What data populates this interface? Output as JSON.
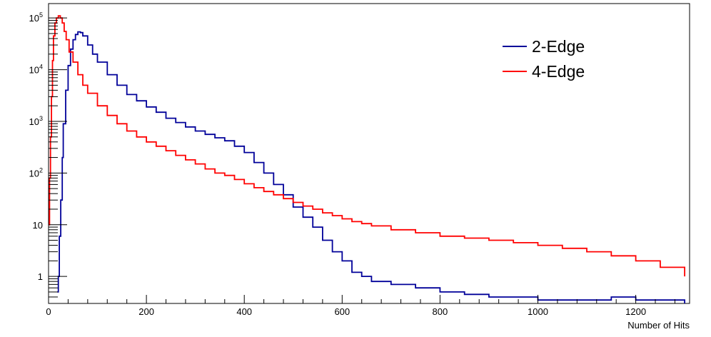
{
  "chart_data": {
    "type": "line",
    "title": "",
    "xlabel": "Number of Hits",
    "ylabel": "",
    "xlim": [
      0,
      1310
    ],
    "ylim": [
      0.3,
      190000
    ],
    "log_y": true,
    "grid": false,
    "legend_position": "top-right",
    "x_ticks": [
      "0",
      "200",
      "400",
      "600",
      "800",
      "1000",
      "1200"
    ],
    "y_ticks": [
      {
        "value": 1,
        "base": "1",
        "exp": ""
      },
      {
        "value": 10,
        "base": "10",
        "exp": ""
      },
      {
        "value": 100,
        "base": "10",
        "exp": "2"
      },
      {
        "value": 1000,
        "base": "10",
        "exp": "3"
      },
      {
        "value": 10000,
        "base": "10",
        "exp": "4"
      },
      {
        "value": 100000,
        "base": "10",
        "exp": "5"
      }
    ],
    "series": [
      {
        "name": "2-Edge",
        "color": "#000099",
        "points": [
          [
            18,
            0.5
          ],
          [
            20,
            1
          ],
          [
            22,
            6
          ],
          [
            25,
            30
          ],
          [
            28,
            200
          ],
          [
            30,
            900
          ],
          [
            35,
            4000
          ],
          [
            40,
            12000
          ],
          [
            45,
            25000
          ],
          [
            50,
            38000
          ],
          [
            55,
            48000
          ],
          [
            60,
            54000
          ],
          [
            65,
            52000
          ],
          [
            70,
            45000
          ],
          [
            80,
            30000
          ],
          [
            90,
            20000
          ],
          [
            100,
            14000
          ],
          [
            120,
            8000
          ],
          [
            140,
            5000
          ],
          [
            160,
            3300
          ],
          [
            180,
            2500
          ],
          [
            200,
            1900
          ],
          [
            220,
            1500
          ],
          [
            240,
            1150
          ],
          [
            260,
            950
          ],
          [
            280,
            780
          ],
          [
            300,
            650
          ],
          [
            320,
            560
          ],
          [
            340,
            480
          ],
          [
            360,
            420
          ],
          [
            380,
            330
          ],
          [
            400,
            250
          ],
          [
            420,
            160
          ],
          [
            440,
            100
          ],
          [
            460,
            60
          ],
          [
            480,
            38
          ],
          [
            500,
            22
          ],
          [
            520,
            14
          ],
          [
            540,
            9
          ],
          [
            560,
            5
          ],
          [
            580,
            3
          ],
          [
            600,
            2
          ],
          [
            620,
            1.2
          ],
          [
            640,
            1
          ],
          [
            660,
            0.8
          ],
          [
            700,
            0.7
          ],
          [
            750,
            0.6
          ],
          [
            800,
            0.5
          ],
          [
            850,
            0.45
          ],
          [
            900,
            0.4
          ],
          [
            950,
            0.4
          ],
          [
            1000,
            0.35
          ],
          [
            1050,
            0.35
          ],
          [
            1100,
            0.35
          ],
          [
            1150,
            0.4
          ],
          [
            1200,
            0.35
          ],
          [
            1250,
            0.35
          ],
          [
            1300,
            0.3
          ]
        ]
      },
      {
        "name": "4-Edge",
        "color": "#ff0000",
        "points": [
          [
            0,
            10
          ],
          [
            2,
            80
          ],
          [
            4,
            500
          ],
          [
            6,
            3000
          ],
          [
            8,
            15000
          ],
          [
            10,
            45000
          ],
          [
            13,
            80000
          ],
          [
            16,
            100000
          ],
          [
            20,
            110000
          ],
          [
            24,
            100000
          ],
          [
            28,
            80000
          ],
          [
            32,
            55000
          ],
          [
            36,
            38000
          ],
          [
            42,
            22000
          ],
          [
            50,
            14000
          ],
          [
            60,
            8000
          ],
          [
            70,
            5000
          ],
          [
            80,
            3500
          ],
          [
            100,
            2000
          ],
          [
            120,
            1300
          ],
          [
            140,
            900
          ],
          [
            160,
            650
          ],
          [
            180,
            500
          ],
          [
            200,
            400
          ],
          [
            220,
            330
          ],
          [
            240,
            270
          ],
          [
            260,
            220
          ],
          [
            280,
            180
          ],
          [
            300,
            150
          ],
          [
            320,
            120
          ],
          [
            340,
            100
          ],
          [
            360,
            90
          ],
          [
            380,
            75
          ],
          [
            400,
            62
          ],
          [
            420,
            52
          ],
          [
            440,
            44
          ],
          [
            460,
            38
          ],
          [
            480,
            32
          ],
          [
            500,
            27
          ],
          [
            520,
            23
          ],
          [
            540,
            20
          ],
          [
            560,
            17
          ],
          [
            580,
            15
          ],
          [
            600,
            13
          ],
          [
            620,
            11.5
          ],
          [
            640,
            10.5
          ],
          [
            660,
            9.5
          ],
          [
            700,
            8
          ],
          [
            750,
            7
          ],
          [
            800,
            6
          ],
          [
            850,
            5.5
          ],
          [
            900,
            5
          ],
          [
            950,
            4.5
          ],
          [
            1000,
            4
          ],
          [
            1050,
            3.5
          ],
          [
            1100,
            3
          ],
          [
            1150,
            2.5
          ],
          [
            1200,
            2
          ],
          [
            1250,
            1.5
          ],
          [
            1300,
            1
          ]
        ]
      }
    ]
  }
}
